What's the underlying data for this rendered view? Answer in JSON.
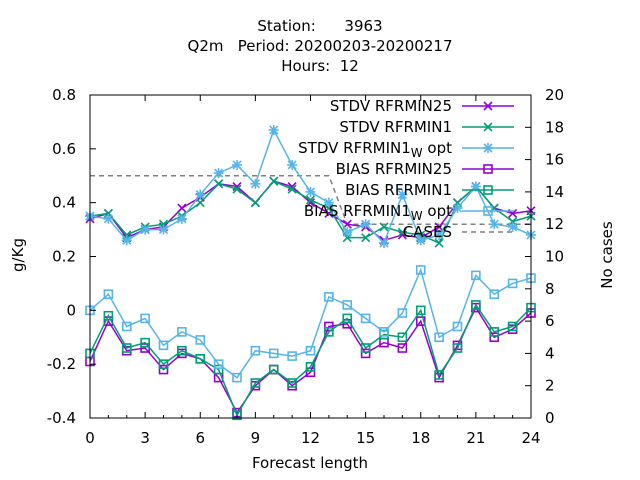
{
  "header": {
    "title_line1": "Station:      3963",
    "title_line2": "Q2m   Period: 20200203-20200217",
    "title_line3": "Hours:  12"
  },
  "axes": {
    "xlabel": "Forecast length",
    "ylabel_left": "g/Kg",
    "ylabel_right": "No cases"
  },
  "chart_data": {
    "type": "line",
    "x": [
      0,
      1,
      2,
      3,
      4,
      5,
      6,
      7,
      8,
      9,
      10,
      11,
      12,
      13,
      14,
      15,
      16,
      17,
      18,
      19,
      20,
      21,
      22,
      23,
      24
    ],
    "xlim": [
      0,
      24
    ],
    "xticks": [
      0,
      3,
      6,
      9,
      12,
      15,
      18,
      21,
      24
    ],
    "ylim": [
      -0.4,
      0.8
    ],
    "yticks": [
      -0.4,
      -0.2,
      0,
      0.2,
      0.4,
      0.6,
      0.8
    ],
    "ytick_labels": [
      "-0.4",
      "-0.2",
      "0",
      "0.2",
      "0.4",
      "0.6",
      "0.8"
    ],
    "y2lim": [
      0,
      20
    ],
    "y2ticks": [
      0,
      2,
      4,
      6,
      8,
      10,
      12,
      14,
      16,
      18,
      20
    ],
    "grid": false,
    "legend_position": "top-right",
    "series": [
      {
        "name": "STDV RFRMIN25",
        "color": "#9400d3",
        "marker": "x",
        "axis": "left",
        "values": [
          0.34,
          0.36,
          0.27,
          0.3,
          0.31,
          0.38,
          0.42,
          0.47,
          0.46,
          0.4,
          0.48,
          0.46,
          0.4,
          0.36,
          0.32,
          0.31,
          0.26,
          0.28,
          0.27,
          0.31,
          0.4,
          0.46,
          0.38,
          0.36,
          0.37
        ]
      },
      {
        "name": "STDV RFRMIN1",
        "color": "#009e73",
        "marker": "x",
        "axis": "left",
        "values": [
          0.35,
          0.36,
          0.28,
          0.31,
          0.32,
          0.35,
          0.4,
          0.47,
          0.45,
          0.4,
          0.48,
          0.45,
          0.41,
          0.38,
          0.27,
          0.27,
          0.31,
          0.29,
          0.28,
          0.25,
          0.4,
          0.46,
          0.38,
          0.33,
          0.35
        ]
      },
      {
        "name": "STDV RFRMIN1_W opt",
        "color": "#56b4e9",
        "marker": "*",
        "axis": "left",
        "values": [
          0.35,
          0.34,
          0.26,
          0.3,
          0.3,
          0.34,
          0.43,
          0.51,
          0.54,
          0.47,
          0.67,
          0.54,
          0.44,
          0.4,
          0.29,
          0.32,
          0.25,
          0.43,
          0.26,
          0.28,
          0.38,
          0.46,
          0.32,
          0.31,
          0.28
        ]
      },
      {
        "name": "BIAS RFRMIN25",
        "color": "#9400d3",
        "marker": "square",
        "axis": "left",
        "values": [
          -0.19,
          -0.04,
          -0.15,
          -0.14,
          -0.22,
          -0.16,
          -0.18,
          -0.25,
          -0.38,
          -0.28,
          -0.22,
          -0.28,
          -0.23,
          -0.06,
          -0.05,
          -0.16,
          -0.12,
          -0.14,
          -0.04,
          -0.25,
          -0.13,
          0.01,
          -0.1,
          -0.07,
          -0.01
        ]
      },
      {
        "name": "BIAS RFRMIN1",
        "color": "#009e73",
        "marker": "square",
        "axis": "left",
        "values": [
          -0.16,
          -0.02,
          -0.14,
          -0.12,
          -0.2,
          -0.15,
          -0.18,
          -0.22,
          -0.39,
          -0.27,
          -0.22,
          -0.27,
          -0.21,
          -0.08,
          -0.03,
          -0.14,
          -0.09,
          -0.1,
          0.0,
          -0.24,
          -0.14,
          0.02,
          -0.08,
          -0.06,
          0.01
        ]
      },
      {
        "name": "BIAS RFRMIN1_W opt",
        "color": "#56b4e9",
        "marker": "square",
        "axis": "left",
        "values": [
          0.0,
          0.06,
          -0.06,
          -0.03,
          -0.13,
          -0.08,
          -0.11,
          -0.2,
          -0.25,
          -0.15,
          -0.16,
          -0.17,
          -0.15,
          0.05,
          0.02,
          -0.03,
          -0.08,
          -0.01,
          0.15,
          -0.1,
          -0.06,
          0.13,
          0.06,
          0.1,
          0.12
        ]
      },
      {
        "name": "CASES",
        "color": "#808080",
        "dashed": true,
        "axis": "right",
        "y2_values": [
          15,
          15,
          15,
          15,
          15,
          15,
          15,
          15,
          15,
          15,
          15,
          15,
          15,
          15,
          12,
          12,
          12,
          12,
          12,
          12,
          12,
          12,
          12,
          12,
          12
        ]
      }
    ]
  }
}
